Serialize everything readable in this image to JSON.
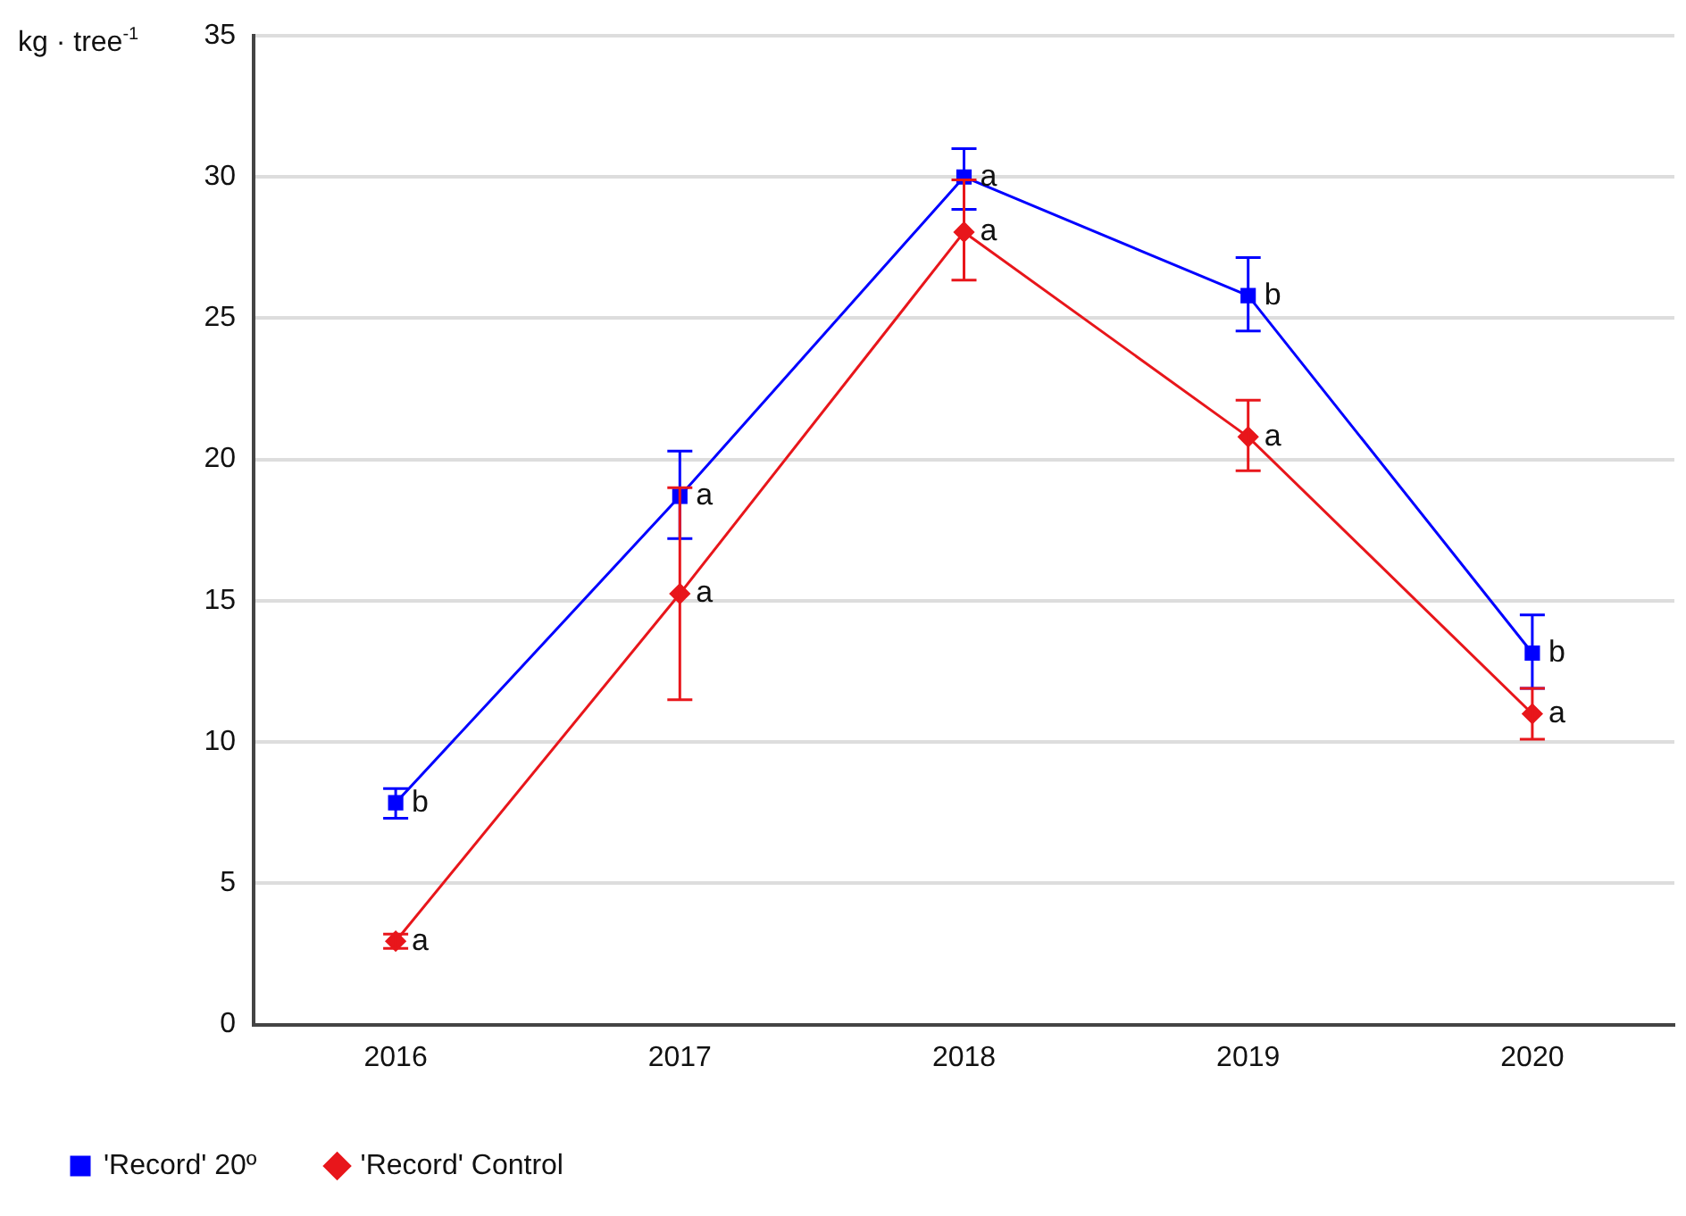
{
  "chart_data": {
    "type": "line",
    "ylabel": "kg · tree$^{-1}$",
    "categories": [
      "2016",
      "2017",
      "2018",
      "2019",
      "2020"
    ],
    "series": [
      {
        "name": "'Record' 20º",
        "color": "#0000ff",
        "marker": "square",
        "values": [
          7.85,
          18.7,
          30.0,
          25.8,
          13.15
        ],
        "errors": [
          [
            7.3,
            8.35
          ],
          [
            17.2,
            20.3
          ],
          [
            28.85,
            31.0
          ],
          [
            24.55,
            27.15
          ],
          [
            11.9,
            14.5
          ]
        ]
      },
      {
        "name": "'Record' Control",
        "color": "#e8161b",
        "marker": "diamond",
        "values": [
          2.95,
          15.25,
          28.05,
          20.8,
          11.0
        ],
        "errors": [
          [
            2.7,
            3.2
          ],
          [
            11.5,
            19.0
          ],
          [
            26.35,
            29.9
          ],
          [
            19.6,
            22.1
          ],
          [
            10.1,
            11.9
          ]
        ]
      }
    ],
    "annotations": [
      {
        "text": "b",
        "x": "2016",
        "y": 7.85
      },
      {
        "text": "a",
        "x": "2017",
        "y": 18.7
      },
      {
        "text": "a",
        "x": "2018",
        "y": 30.0
      },
      {
        "text": "b",
        "x": "2019",
        "y": 25.8
      },
      {
        "text": "b",
        "x": "2020",
        "y": 13.15
      },
      {
        "text": "a",
        "x": "2016",
        "y": 2.95
      },
      {
        "text": "a",
        "x": "2017",
        "y": 15.25
      },
      {
        "text": "a",
        "x": "2018",
        "y": 28.05
      },
      {
        "text": "a",
        "x": "2019",
        "y": 20.8
      },
      {
        "text": "a",
        "x": "2020",
        "y": 11.0
      }
    ],
    "ylim": [
      0,
      35
    ],
    "yticks": [
      0,
      5,
      10,
      15,
      20,
      25,
      30,
      35
    ],
    "grid": "y",
    "legend": "bottom left",
    "line_style": "solid"
  }
}
